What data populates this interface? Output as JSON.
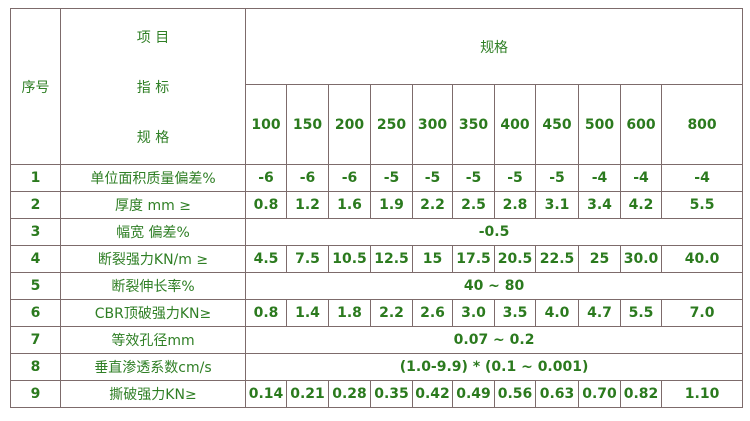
{
  "header": {
    "seq": "序号",
    "item_lines": [
      "项 目",
      "指 标",
      "规 格"
    ],
    "spec": "规格",
    "specs": [
      "100",
      "150",
      "200",
      "250",
      "300",
      "350",
      "400",
      "450",
      "500",
      "600",
      "800"
    ]
  },
  "rows": [
    {
      "no": "1",
      "label": "单位面积质量偏差%",
      "values": [
        "-6",
        "-6",
        "-6",
        "-5",
        "-5",
        "-5",
        "-5",
        "-5",
        "-4",
        "-4",
        "-4"
      ]
    },
    {
      "no": "2",
      "label": "厚度 mm ≥",
      "values": [
        "0.8",
        "1.2",
        "1.6",
        "1.9",
        "2.2",
        "2.5",
        "2.8",
        "3.1",
        "3.4",
        "4.2",
        "5.5"
      ]
    },
    {
      "no": "3",
      "label": "幅宽 偏差%",
      "merged": "-0.5"
    },
    {
      "no": "4",
      "label": "断裂强力KN/m ≥",
      "values": [
        "4.5",
        "7.5",
        "10.5",
        "12.5",
        "15",
        "17.5",
        "20.5",
        "22.5",
        "25",
        "30.0",
        "40.0"
      ]
    },
    {
      "no": "5",
      "label": "断裂伸长率%",
      "merged": "40 ~ 80"
    },
    {
      "no": "6",
      "label": "CBR顶破强力KN≥",
      "values": [
        "0.8",
        "1.4",
        "1.8",
        "2.2",
        "2.6",
        "3.0",
        "3.5",
        "4.0",
        "4.7",
        "5.5",
        "7.0"
      ]
    },
    {
      "no": "7",
      "label": "等效孔径mm",
      "merged": "0.07 ~ 0.2"
    },
    {
      "no": "8",
      "label": "垂直渗透系数cm/s",
      "merged": "(1.0-9.9) * (0.1 ~ 0.001)"
    },
    {
      "no": "9",
      "label": "撕破强力KN≥",
      "values": [
        "0.14",
        "0.21",
        "0.28",
        "0.35",
        "0.42",
        "0.49",
        "0.56",
        "0.63",
        "0.70",
        "0.82",
        "1.10"
      ]
    }
  ],
  "colors": {
    "text": "#2b7a1e",
    "border": "#7d6b6b"
  }
}
